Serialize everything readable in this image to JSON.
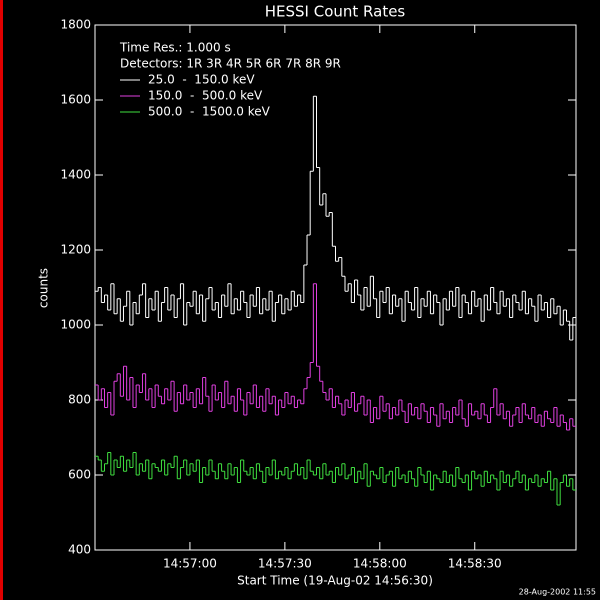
{
  "chart_data": {
    "type": "step",
    "title": "HESSI Count Rates",
    "x_label": "Start Time (19-Aug-02 14:56:30)",
    "y_label": "counts",
    "annotations": [
      "Time Res.: 1.000 s",
      "Detectors: 1R 3R 4R 5R 6R 7R 8R 9R"
    ],
    "stamp": "28-Aug-2002 11:55",
    "xlim": [
      0,
      152
    ],
    "xticks": [
      {
        "value": 30,
        "label": "14:57:00"
      },
      {
        "value": 60,
        "label": "14:57:30"
      },
      {
        "value": 90,
        "label": "14:58:00"
      },
      {
        "value": 120,
        "label": "14:58:30"
      }
    ],
    "ylim": [
      400,
      1800
    ],
    "yticks": [
      400,
      600,
      800,
      1000,
      1200,
      1400,
      1600,
      1800
    ],
    "x": [
      0,
      1,
      2,
      3,
      4,
      5,
      6,
      7,
      8,
      9,
      10,
      11,
      12,
      13,
      14,
      15,
      16,
      17,
      18,
      19,
      20,
      21,
      22,
      23,
      24,
      25,
      26,
      27,
      28,
      29,
      30,
      31,
      32,
      33,
      34,
      35,
      36,
      37,
      38,
      39,
      40,
      41,
      42,
      43,
      44,
      45,
      46,
      47,
      48,
      49,
      50,
      51,
      52,
      53,
      54,
      55,
      56,
      57,
      58,
      59,
      60,
      61,
      62,
      63,
      64,
      65,
      66,
      67,
      68,
      69,
      70,
      71,
      72,
      73,
      74,
      75,
      76,
      77,
      78,
      79,
      80,
      81,
      82,
      83,
      84,
      85,
      86,
      87,
      88,
      89,
      90,
      91,
      92,
      93,
      94,
      95,
      96,
      97,
      98,
      99,
      100,
      101,
      102,
      103,
      104,
      105,
      106,
      107,
      108,
      109,
      110,
      111,
      112,
      113,
      114,
      115,
      116,
      117,
      118,
      119,
      120,
      121,
      122,
      123,
      124,
      125,
      126,
      127,
      128,
      129,
      130,
      131,
      132,
      133,
      134,
      135,
      136,
      137,
      138,
      139,
      140,
      141,
      142,
      143,
      144,
      145,
      146,
      147,
      148,
      149,
      150,
      151
    ],
    "series": [
      {
        "name": "25.0  -  150.0 keV",
        "color": "#ffffff",
        "values": [
          1090,
          1100,
          1060,
          1080,
          1040,
          1110,
          1030,
          1070,
          1010,
          1050,
          1090,
          1000,
          1060,
          1030,
          1080,
          1110,
          1020,
          1070,
          1040,
          1090,
          1010,
          1060,
          1100,
          1040,
          1080,
          1020,
          1070,
          1110,
          1000,
          1060,
          1050,
          1090,
          1030,
          1080,
          1010,
          1070,
          1100,
          1040,
          1060,
          1020,
          1080,
          1050,
          1110,
          1030,
          1070,
          1040,
          1090,
          1060,
          1020,
          1080,
          1050,
          1100,
          1030,
          1070,
          1040,
          1090,
          1010,
          1060,
          1080,
          1030,
          1070,
          1040,
          1090,
          1050,
          1080,
          1060,
          1160,
          1240,
          1410,
          1610,
          1420,
          1320,
          1350,
          1290,
          1300,
          1210,
          1170,
          1180,
          1130,
          1090,
          1110,
          1060,
          1120,
          1080,
          1040,
          1100,
          1050,
          1130,
          1070,
          1020,
          1090,
          1060,
          1100,
          1030,
          1080,
          1050,
          1070,
          1010,
          1090,
          1060,
          1040,
          1100,
          1020,
          1070,
          1050,
          1090,
          1030,
          1080,
          1060,
          1000,
          1070,
          1040,
          1090,
          1050,
          1100,
          1020,
          1080,
          1060,
          1030,
          1090,
          1050,
          1070,
          1010,
          1080,
          1040,
          1100,
          1060,
          1030,
          1090,
          1050,
          1070,
          1020,
          1080,
          1060,
          1040,
          1090,
          1030,
          1070,
          1050,
          1010,
          1080,
          1040,
          1060,
          1020,
          1070,
          1030,
          1050,
          1000,
          1040,
          1010,
          960,
          1020
        ]
      },
      {
        "name": "150.0  -  500.0 keV",
        "color": "#e040e0",
        "values": [
          840,
          800,
          830,
          780,
          820,
          760,
          850,
          870,
          810,
          890,
          800,
          860,
          780,
          840,
          820,
          870,
          800,
          830,
          780,
          840,
          810,
          790,
          830,
          800,
          850,
          770,
          820,
          790,
          840,
          800,
          820,
          780,
          830,
          790,
          860,
          810,
          770,
          840,
          800,
          820,
          780,
          850,
          790,
          810,
          770,
          830,
          800,
          760,
          820,
          790,
          840,
          780,
          810,
          770,
          830,
          790,
          810,
          760,
          800,
          780,
          820,
          790,
          810,
          780,
          800,
          790,
          830,
          860,
          900,
          1110,
          890,
          850,
          820,
          800,
          830,
          780,
          810,
          790,
          760,
          800,
          780,
          820,
          770,
          790,
          810,
          760,
          800,
          740,
          780,
          750,
          810,
          770,
          790,
          750,
          780,
          760,
          800,
          770,
          740,
          790,
          760,
          780,
          750,
          790,
          770,
          740,
          780,
          760,
          730,
          790,
          750,
          770,
          740,
          780,
          760,
          800,
          750,
          730,
          790,
          760,
          770,
          750,
          790,
          760,
          740,
          780,
          830,
          760,
          790,
          750,
          770,
          730,
          760,
          780,
          740,
          790,
          760,
          750,
          780,
          740,
          760,
          730,
          770,
          750,
          740,
          780,
          730,
          760,
          740,
          720,
          750,
          730
        ]
      },
      {
        "name": "500.0  -  1500.0 keV",
        "color": "#40e040",
        "values": [
          650,
          640,
          610,
          630,
          660,
          600,
          640,
          620,
          650,
          610,
          640,
          620,
          660,
          600,
          630,
          610,
          640,
          590,
          630,
          620,
          610,
          640,
          600,
          630,
          620,
          650,
          590,
          620,
          640,
          600,
          630,
          610,
          640,
          580,
          620,
          600,
          640,
          610,
          590,
          630,
          610,
          590,
          630,
          600,
          620,
          580,
          640,
          610,
          600,
          620,
          590,
          630,
          610,
          580,
          620,
          600,
          640,
          590,
          610,
          600,
          620,
          590,
          610,
          630,
          600,
          620,
          590,
          640,
          610,
          600,
          620,
          590,
          630,
          600,
          610,
          580,
          620,
          600,
          630,
          590,
          600,
          620,
          580,
          610,
          590,
          630,
          570,
          610,
          600,
          590,
          620,
          580,
          600,
          610,
          570,
          620,
          590,
          600,
          580,
          610,
          590,
          570,
          620,
          600,
          580,
          610,
          560,
          600,
          590,
          580,
          610,
          580,
          600,
          570,
          620,
          590,
          580,
          600,
          560,
          610,
          590,
          600,
          570,
          610,
          580,
          600,
          590,
          560,
          610,
          580,
          600,
          570,
          590,
          610,
          580,
          600,
          560,
          590,
          580,
          600,
          570,
          590,
          580,
          610,
          560,
          590,
          520,
          580,
          600,
          570,
          590,
          560
        ]
      }
    ]
  }
}
